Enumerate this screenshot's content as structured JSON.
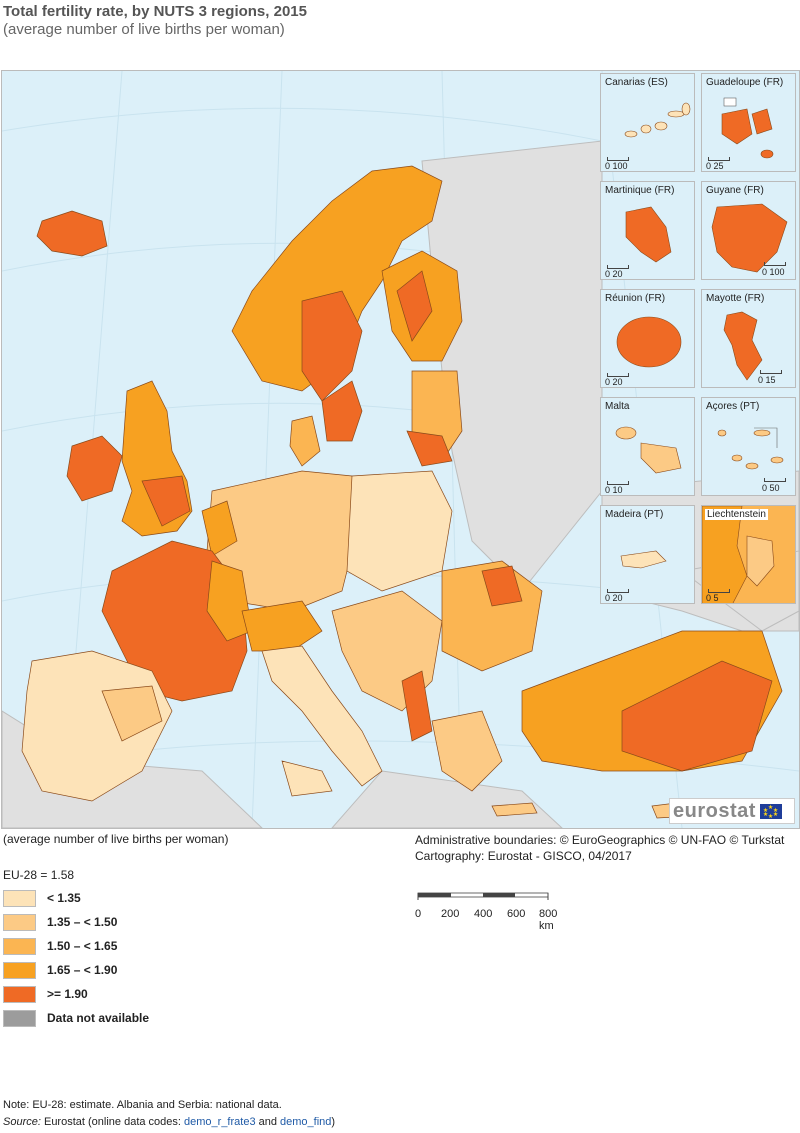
{
  "title": "Total fertility rate, by NUTS 3 regions, 2015",
  "subtitle": "(average number of live births per woman)",
  "below_map_unit": "(average number of live births per woman)",
  "credits": {
    "line1": "Administrative boundaries: © EuroGeographics © UN-FAO © Turkstat",
    "line2": "Cartography: Eurostat - GISCO, 04/2017"
  },
  "eu_value": "EU-28 = 1.58",
  "legend": [
    {
      "label": "< 1.35",
      "color": "#fde3b8"
    },
    {
      "label": "1.35 – < 1.50",
      "color": "#fcca85"
    },
    {
      "label": "1.50 – < 1.65",
      "color": "#fbb552"
    },
    {
      "label": "1.65 – < 1.90",
      "color": "#f7a121"
    },
    {
      "label": ">= 1.90",
      "color": "#ef6a25"
    },
    {
      "label": "Data not available",
      "color": "#9c9c9c"
    }
  ],
  "scale": {
    "ticks": [
      "0",
      "200",
      "400",
      "600",
      "800 km"
    ]
  },
  "insets": [
    {
      "name": "Canarias (ES)",
      "scale_label": "0  100"
    },
    {
      "name": "Guadeloupe (FR)",
      "scale_label": "0    25"
    },
    {
      "name": "Martinique (FR)",
      "scale_label": "0    20"
    },
    {
      "name": "Guyane (FR)",
      "scale_label": "0  100"
    },
    {
      "name": "Réunion (FR)",
      "scale_label": "0    20"
    },
    {
      "name": "Mayotte (FR)",
      "scale_label": "0    15"
    },
    {
      "name": "Malta",
      "scale_label": "0    10"
    },
    {
      "name": "Açores (PT)",
      "scale_label": "0   50"
    },
    {
      "name": "Madeira (PT)",
      "scale_label": "0   20"
    },
    {
      "name": "Liechtenstein",
      "scale_label": "0    5"
    }
  ],
  "logo_text": "eurostat",
  "note": "Note: EU-28: estimate. Albania and Serbia: national data.",
  "source": {
    "label": "Source:",
    "prefix": " Eurostat (online data codes: ",
    "code1": "demo_r_frate3",
    "middle": " and ",
    "code2": "demo_find",
    "suffix": ")"
  }
}
